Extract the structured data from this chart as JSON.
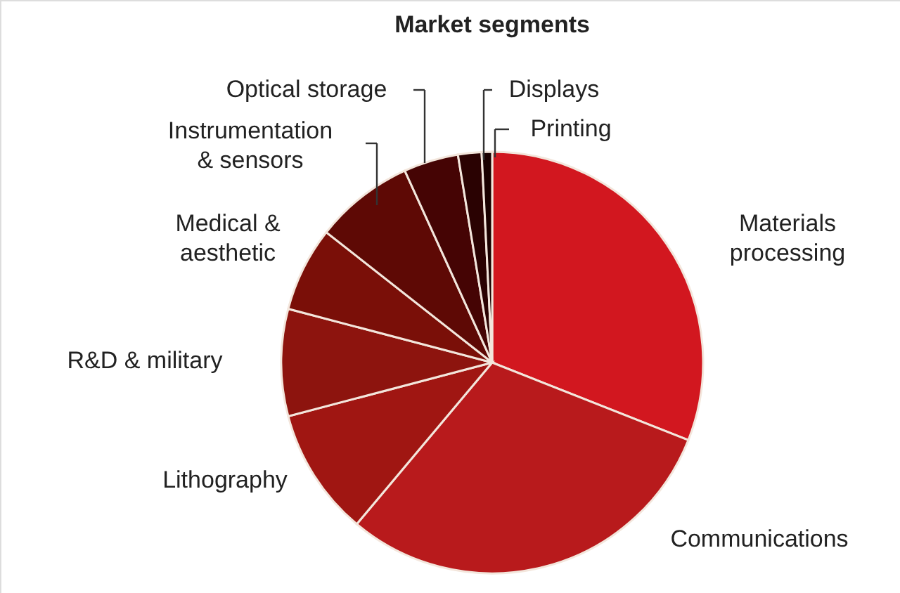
{
  "chart_data": {
    "type": "pie",
    "title": "Market segments",
    "categories": [
      "Materials processing",
      "Communications",
      "Lithography",
      "R&D & military",
      "Medical & aesthetic",
      "Instrumentation & sensors",
      "Optical storage",
      "Displays",
      "Printing"
    ],
    "values": [
      31.0,
      30.1,
      9.8,
      8.2,
      6.5,
      7.6,
      4.2,
      1.8,
      0.8
    ],
    "colors": [
      "#d2171f",
      "#b81a1c",
      "#a01612",
      "#8d140e",
      "#7a0f08",
      "#5e0905",
      "#450404",
      "#2a0202",
      "#1a0000"
    ]
  }
}
